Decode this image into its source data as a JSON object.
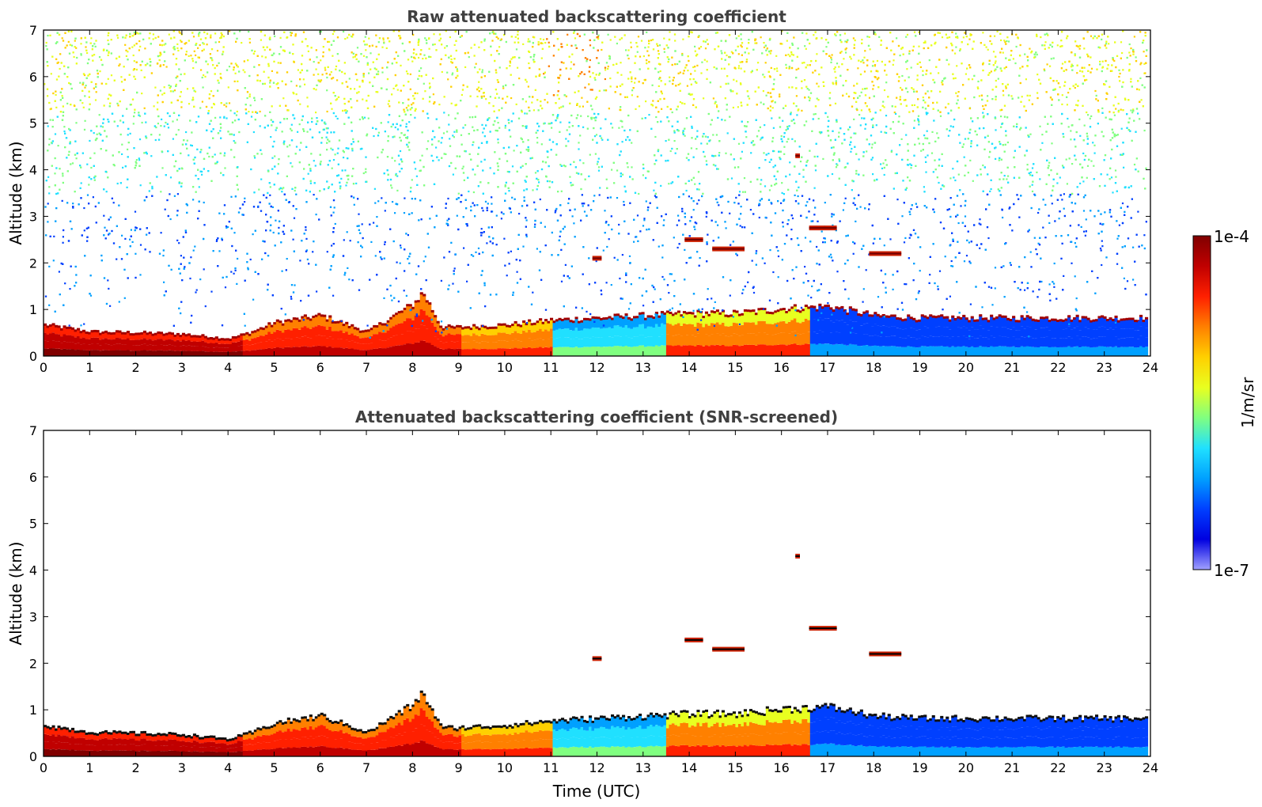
{
  "chart_data": [
    {
      "type": "heatmap",
      "title": "Raw attenuated backscattering coefficient",
      "xlabel": "",
      "ylabel": "Altitude (km)",
      "xlim": [
        0,
        24
      ],
      "ylim": [
        0,
        7
      ],
      "x_ticks": [
        "0",
        "1",
        "2",
        "3",
        "4",
        "5",
        "6",
        "7",
        "8",
        "9",
        "10",
        "11",
        "12",
        "13",
        "14",
        "15",
        "16",
        "17",
        "18",
        "19",
        "20",
        "21",
        "22",
        "23",
        "24"
      ],
      "y_ticks": [
        "0",
        "1",
        "2",
        "3",
        "4",
        "5",
        "6",
        "7"
      ],
      "boundary_layer_top_km": [
        [
          0,
          0.65
        ],
        [
          1,
          0.5
        ],
        [
          2,
          0.48
        ],
        [
          3,
          0.45
        ],
        [
          4,
          0.35
        ],
        [
          4.5,
          0.5
        ],
        [
          5,
          0.7
        ],
        [
          6,
          0.85
        ],
        [
          7,
          0.5
        ],
        [
          8,
          1.1
        ],
        [
          8.2,
          1.35
        ],
        [
          8.6,
          0.6
        ],
        [
          9,
          0.6
        ],
        [
          10,
          0.65
        ],
        [
          11,
          0.75
        ],
        [
          12,
          0.8
        ],
        [
          13,
          0.85
        ],
        [
          14,
          0.9
        ],
        [
          15,
          0.9
        ],
        [
          16,
          1.0
        ],
        [
          17,
          1.05
        ],
        [
          18,
          0.85
        ],
        [
          19,
          0.8
        ],
        [
          20,
          0.8
        ],
        [
          21,
          0.8
        ],
        [
          22,
          0.8
        ],
        [
          23,
          0.8
        ],
        [
          23.9,
          0.8
        ]
      ],
      "noise": "dense background noise increasing with altitude",
      "colorscale": "log"
    },
    {
      "type": "heatmap",
      "title": "Attenuated backscattering coefficient (SNR-screened)",
      "xlabel": "Time (UTC)",
      "ylabel": "Altitude (km)",
      "xlim": [
        0,
        24
      ],
      "ylim": [
        0,
        7
      ],
      "x_ticks": [
        "0",
        "1",
        "2",
        "3",
        "4",
        "5",
        "6",
        "7",
        "8",
        "9",
        "10",
        "11",
        "12",
        "13",
        "14",
        "15",
        "16",
        "17",
        "18",
        "19",
        "20",
        "21",
        "22",
        "23",
        "24"
      ],
      "y_ticks": [
        "0",
        "1",
        "2",
        "3",
        "4",
        "5",
        "6",
        "7"
      ],
      "boundary_layer_top_km": [
        [
          0,
          0.65
        ],
        [
          1,
          0.5
        ],
        [
          2,
          0.48
        ],
        [
          3,
          0.45
        ],
        [
          4,
          0.35
        ],
        [
          4.5,
          0.5
        ],
        [
          5,
          0.7
        ],
        [
          6,
          0.85
        ],
        [
          7,
          0.5
        ],
        [
          8,
          1.1
        ],
        [
          8.2,
          1.35
        ],
        [
          8.6,
          0.6
        ],
        [
          9,
          0.6
        ],
        [
          10,
          0.65
        ],
        [
          11,
          0.75
        ],
        [
          12,
          0.8
        ],
        [
          13,
          0.85
        ],
        [
          14,
          0.9
        ],
        [
          15,
          0.9
        ],
        [
          16,
          1.0
        ],
        [
          17,
          1.05
        ],
        [
          18,
          0.85
        ],
        [
          19,
          0.8
        ],
        [
          20,
          0.8
        ],
        [
          21,
          0.8
        ],
        [
          22,
          0.8
        ],
        [
          23,
          0.8
        ],
        [
          23.9,
          0.8
        ]
      ],
      "cloud_features": [
        {
          "t_start": 11.9,
          "t_end": 12.1,
          "alt_km": 2.1
        },
        {
          "t_start": 13.9,
          "t_end": 14.3,
          "alt_km": 2.5
        },
        {
          "t_start": 14.5,
          "t_end": 15.2,
          "alt_km": 2.3
        },
        {
          "t_start": 16.3,
          "t_end": 16.4,
          "alt_km": 4.3
        },
        {
          "t_start": 16.6,
          "t_end": 17.2,
          "alt_km": 2.75
        },
        {
          "t_start": 17.9,
          "t_end": 18.6,
          "alt_km": 2.2
        }
      ],
      "colorscale": "log"
    }
  ],
  "colorbar": {
    "max_label": "1e-4",
    "min_label": "1e-7",
    "unit_label": "1/m/sr",
    "colors": [
      "#800000",
      "#c00000",
      "#ff2000",
      "#ff8000",
      "#ffd000",
      "#e8ff20",
      "#80ff80",
      "#20e0ff",
      "#00a0ff",
      "#0040ff",
      "#0000e0",
      "#a0a0ff"
    ]
  }
}
